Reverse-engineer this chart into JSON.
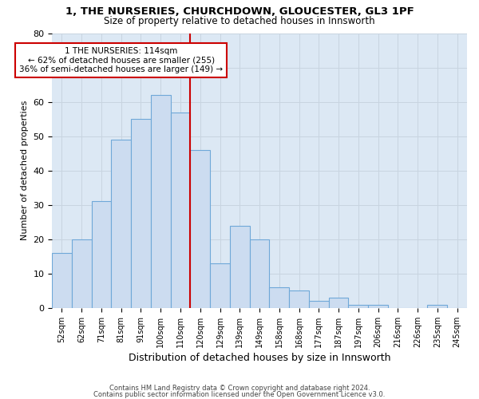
{
  "title1": "1, THE NURSERIES, CHURCHDOWN, GLOUCESTER, GL3 1PF",
  "title2": "Size of property relative to detached houses in Innsworth",
  "xlabel": "Distribution of detached houses by size in Innsworth",
  "ylabel": "Number of detached properties",
  "categories": [
    "52sqm",
    "62sqm",
    "71sqm",
    "81sqm",
    "91sqm",
    "100sqm",
    "110sqm",
    "120sqm",
    "129sqm",
    "139sqm",
    "149sqm",
    "158sqm",
    "168sqm",
    "177sqm",
    "187sqm",
    "197sqm",
    "206sqm",
    "216sqm",
    "226sqm",
    "235sqm",
    "245sqm"
  ],
  "values": [
    16,
    20,
    31,
    49,
    55,
    62,
    57,
    46,
    13,
    24,
    20,
    6,
    5,
    2,
    3,
    1,
    1,
    0,
    0,
    1,
    0
  ],
  "bar_color": "#ccdcf0",
  "bar_edge_color": "#6fa8d8",
  "bar_linewidth": 0.8,
  "property_line_color": "#cc0000",
  "annotation_text": "1 THE NURSERIES: 114sqm\n← 62% of detached houses are smaller (255)\n36% of semi-detached houses are larger (149) →",
  "annotation_box_color": "#ffffff",
  "annotation_box_edge": "#cc0000",
  "ylim": [
    0,
    80
  ],
  "yticks": [
    0,
    10,
    20,
    30,
    40,
    50,
    60,
    70,
    80
  ],
  "grid_color": "#c8d4e0",
  "bg_color": "#dce8f4",
  "footer1": "Contains HM Land Registry data © Crown copyright and database right 2024.",
  "footer2": "Contains public sector information licensed under the Open Government Licence v3.0."
}
